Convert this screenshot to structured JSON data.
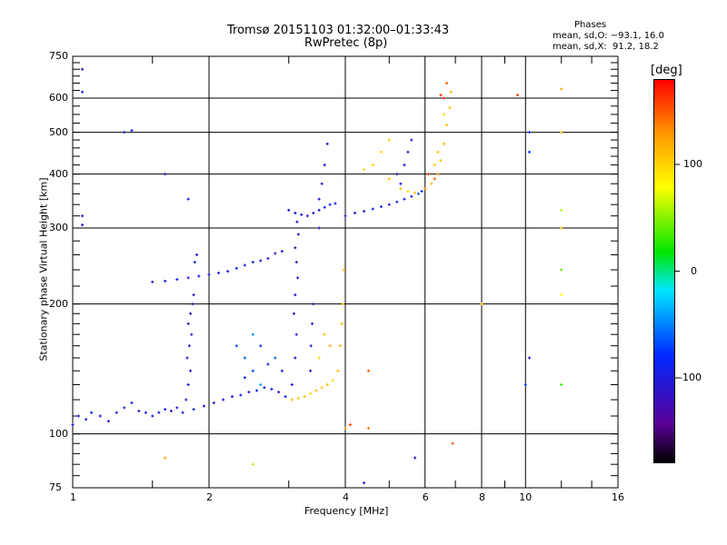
{
  "chart_data": {
    "type": "scatter",
    "title": "Tromsø 20151103 01:32:00–01:33:43",
    "subtitle": "RwPretec (8p)",
    "xlabel": "Frequency [MHz]",
    "ylabel": "Stationary phase Virtual Height [km]",
    "xscale": "log",
    "yscale": "log",
    "xlim": [
      1,
      16
    ],
    "ylim": [
      75,
      750
    ],
    "xticks": [
      1,
      2,
      4,
      6,
      8,
      10,
      16
    ],
    "yticks": [
      75,
      100,
      200,
      300,
      400,
      500,
      600,
      750
    ],
    "grid": true,
    "stats": {
      "title": "Phases",
      "line_o": "mean, sd,O: −93.1, 16.0",
      "line_x": "mean, sd,X:  91.2, 18.2"
    },
    "colorbar": {
      "label": "[deg]",
      "ticks": [
        100,
        0,
        -100
      ],
      "range": [
        -180,
        180
      ]
    },
    "points_columns": [
      "freq_MHz",
      "height_km",
      "phase_deg"
    ],
    "points": [
      [
        1.0,
        105,
        -100
      ],
      [
        1.03,
        110,
        -105
      ],
      [
        1.07,
        108,
        -100
      ],
      [
        1.1,
        112,
        -95
      ],
      [
        1.15,
        110,
        -100
      ],
      [
        1.2,
        107,
        -105
      ],
      [
        1.25,
        112,
        -100
      ],
      [
        1.3,
        115,
        -95
      ],
      [
        1.35,
        118,
        -100
      ],
      [
        1.4,
        113,
        -105
      ],
      [
        1.45,
        112,
        -100
      ],
      [
        1.5,
        110,
        -95
      ],
      [
        1.55,
        112,
        -100
      ],
      [
        1.6,
        114,
        -100
      ],
      [
        1.65,
        113,
        -105
      ],
      [
        1.7,
        115,
        -100
      ],
      [
        1.75,
        112,
        -100
      ],
      [
        1.85,
        114,
        -95
      ],
      [
        1.95,
        116,
        -100
      ],
      [
        2.05,
        118,
        -100
      ],
      [
        2.15,
        120,
        -95
      ],
      [
        2.25,
        122,
        -100
      ],
      [
        2.35,
        123,
        -90
      ],
      [
        2.45,
        125,
        -100
      ],
      [
        2.55,
        126,
        -80
      ],
      [
        2.65,
        128,
        -100
      ],
      [
        2.75,
        127,
        -95
      ],
      [
        2.85,
        125,
        -100
      ],
      [
        2.95,
        122,
        -90
      ],
      [
        3.05,
        120,
        110
      ],
      [
        3.15,
        121,
        105
      ],
      [
        3.25,
        122,
        110
      ],
      [
        3.35,
        124,
        100
      ],
      [
        3.45,
        126,
        110
      ],
      [
        3.55,
        128,
        105
      ],
      [
        3.65,
        130,
        110
      ],
      [
        3.75,
        133,
        100
      ],
      [
        3.85,
        140,
        110
      ],
      [
        3.9,
        160,
        115
      ],
      [
        3.93,
        180,
        110
      ],
      [
        3.95,
        200,
        105
      ],
      [
        3.97,
        240,
        110
      ],
      [
        3.5,
        150,
        100
      ],
      [
        3.6,
        170,
        110
      ],
      [
        3.7,
        160,
        120
      ],
      [
        1.78,
        120,
        -110
      ],
      [
        1.8,
        130,
        -100
      ],
      [
        1.82,
        140,
        -120
      ],
      [
        1.79,
        150,
        -110
      ],
      [
        1.81,
        160,
        -100
      ],
      [
        1.83,
        170,
        -110
      ],
      [
        1.8,
        180,
        -120
      ],
      [
        1.82,
        190,
        -110
      ],
      [
        1.84,
        200,
        -100
      ],
      [
        1.85,
        210,
        -110
      ],
      [
        1.86,
        250,
        -100
      ],
      [
        1.88,
        260,
        -110
      ],
      [
        1.5,
        225,
        -100
      ],
      [
        1.6,
        226,
        -100
      ],
      [
        1.7,
        228,
        -95
      ],
      [
        1.8,
        230,
        -100
      ],
      [
        1.9,
        232,
        -100
      ],
      [
        2.0,
        234,
        -95
      ],
      [
        2.1,
        236,
        -100
      ],
      [
        2.2,
        238,
        -100
      ],
      [
        2.3,
        242,
        -90
      ],
      [
        2.4,
        246,
        -100
      ],
      [
        2.5,
        250,
        -100
      ],
      [
        2.6,
        252,
        -95
      ],
      [
        2.7,
        255,
        -100
      ],
      [
        2.8,
        262,
        -100
      ],
      [
        2.9,
        265,
        -100
      ],
      [
        2.4,
        150,
        -60
      ],
      [
        2.5,
        140,
        -70
      ],
      [
        2.6,
        160,
        -80
      ],
      [
        2.5,
        170,
        -50
      ],
      [
        2.7,
        145,
        -100
      ],
      [
        2.4,
        135,
        -80
      ],
      [
        2.8,
        150,
        -60
      ],
      [
        2.9,
        140,
        -90
      ],
      [
        2.3,
        160,
        -70
      ],
      [
        2.6,
        130,
        -40
      ],
      [
        3.05,
        130,
        -110
      ],
      [
        3.1,
        150,
        -120
      ],
      [
        3.12,
        170,
        -110
      ],
      [
        3.08,
        190,
        -120
      ],
      [
        3.1,
        210,
        -110
      ],
      [
        3.14,
        230,
        -115
      ],
      [
        3.12,
        250,
        -110
      ],
      [
        3.1,
        270,
        -120
      ],
      [
        3.15,
        290,
        -110
      ],
      [
        3.13,
        310,
        -115
      ],
      [
        3.35,
        140,
        -110
      ],
      [
        3.36,
        160,
        -100
      ],
      [
        3.38,
        180,
        -110
      ],
      [
        3.4,
        200,
        -105
      ],
      [
        3.0,
        330,
        -100
      ],
      [
        3.1,
        325,
        -100
      ],
      [
        3.2,
        322,
        -100
      ],
      [
        3.3,
        320,
        -95
      ],
      [
        3.4,
        325,
        -100
      ],
      [
        3.5,
        330,
        -100
      ],
      [
        3.6,
        335,
        -95
      ],
      [
        3.7,
        340,
        -100
      ],
      [
        3.8,
        342,
        -100
      ],
      [
        3.5,
        300,
        -110
      ],
      [
        3.5,
        350,
        -100
      ],
      [
        3.55,
        380,
        -110
      ],
      [
        3.6,
        420,
        -100
      ],
      [
        3.65,
        470,
        -100
      ],
      [
        4.0,
        320,
        -100
      ],
      [
        4.2,
        325,
        -100
      ],
      [
        4.4,
        328,
        -100
      ],
      [
        4.6,
        332,
        -95
      ],
      [
        4.8,
        336,
        -100
      ],
      [
        5.0,
        340,
        -100
      ],
      [
        5.2,
        345,
        -95
      ],
      [
        5.4,
        350,
        -100
      ],
      [
        5.6,
        355,
        -100
      ],
      [
        5.8,
        360,
        -60
      ],
      [
        5.9,
        365,
        -90
      ],
      [
        5.3,
        380,
        -100
      ],
      [
        5.4,
        420,
        -100
      ],
      [
        5.5,
        450,
        -100
      ],
      [
        5.6,
        480,
        -100
      ],
      [
        5.2,
        400,
        -100
      ],
      [
        5.0,
        390,
        110
      ],
      [
        5.3,
        370,
        110
      ],
      [
        5.5,
        365,
        100
      ],
      [
        5.7,
        362,
        110
      ],
      [
        6.0,
        370,
        130
      ],
      [
        6.2,
        380,
        110
      ],
      [
        6.4,
        400,
        120
      ],
      [
        6.5,
        430,
        110
      ],
      [
        6.6,
        470,
        115
      ],
      [
        6.7,
        520,
        110
      ],
      [
        6.8,
        570,
        105
      ],
      [
        6.85,
        620,
        110
      ],
      [
        6.6,
        550,
        100
      ],
      [
        6.4,
        450,
        105
      ],
      [
        6.3,
        420,
        100
      ],
      [
        4.4,
        410,
        100
      ],
      [
        4.6,
        420,
        100
      ],
      [
        4.8,
        450,
        100
      ],
      [
        5.0,
        480,
        105
      ],
      [
        6.3,
        390,
        150
      ],
      [
        6.6,
        600,
        170
      ],
      [
        6.5,
        610,
        160
      ],
      [
        6.7,
        650,
        150
      ],
      [
        6.1,
        400,
        160
      ],
      [
        1.05,
        700,
        -110
      ],
      [
        1.05,
        620,
        -100
      ],
      [
        1.05,
        320,
        -100
      ],
      [
        1.05,
        305,
        -110
      ],
      [
        1.3,
        500,
        -100
      ],
      [
        1.35,
        505,
        -100
      ],
      [
        1.6,
        400,
        -110
      ],
      [
        1.8,
        350,
        -100
      ],
      [
        9.6,
        610,
        160
      ],
      [
        10.2,
        500,
        -80
      ],
      [
        10.2,
        450,
        -80
      ],
      [
        12,
        630,
        120
      ],
      [
        12,
        500,
        110
      ],
      [
        12,
        300,
        110
      ],
      [
        12,
        330,
        60
      ],
      [
        12,
        240,
        40
      ],
      [
        12,
        210,
        80
      ],
      [
        12,
        130,
        30
      ],
      [
        10.2,
        150,
        -110
      ],
      [
        10,
        130,
        -70
      ],
      [
        8.0,
        200,
        100
      ],
      [
        6.9,
        95,
        150
      ],
      [
        4.4,
        77,
        -110
      ],
      [
        4.5,
        140,
        150
      ],
      [
        4.5,
        103,
        140
      ],
      [
        4.0,
        103,
        130
      ],
      [
        4.1,
        105,
        160
      ],
      [
        5.7,
        88,
        -120
      ],
      [
        1.6,
        88,
        120
      ],
      [
        2.5,
        85,
        60
      ]
    ]
  }
}
